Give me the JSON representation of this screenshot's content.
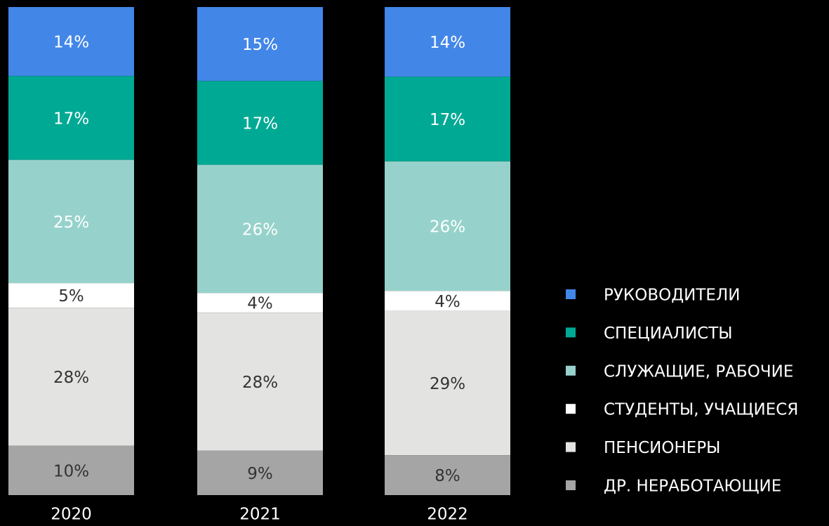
{
  "chart_data": {
    "type": "stacked_bar",
    "categories": [
      "2020",
      "2021",
      "2022"
    ],
    "series": [
      {
        "name": "РУКОВОДИТЕЛИ",
        "color": "#4286e8",
        "values": [
          14,
          15,
          14
        ],
        "value_labels": [
          "14%",
          "15%",
          "14%"
        ]
      },
      {
        "name": "СПЕЦИАЛИСТЫ",
        "color": "#00a994",
        "values": [
          17,
          17,
          17
        ],
        "value_labels": [
          "17%",
          "17%",
          "17%"
        ]
      },
      {
        "name": "СЛУЖАЩИЕ, РАБОЧИЕ",
        "color": "#96d2cb",
        "values": [
          25,
          26,
          26
        ],
        "value_labels": [
          "25%",
          "26%",
          "26%"
        ]
      },
      {
        "name": "СТУДЕНТЫ, УЧАЩИЕСЯ",
        "color": "#ffffff",
        "values": [
          5,
          4,
          4
        ],
        "value_labels": [
          "5%",
          "4%",
          "4%"
        ]
      },
      {
        "name": "ПЕНСИОНЕРЫ",
        "color": "#e3e3e1",
        "values": [
          28,
          28,
          29
        ],
        "value_labels": [
          "28%",
          "28%",
          "29%"
        ]
      },
      {
        "name": "ДР. НЕРАБОТАЮЩИЕ",
        "color": "#a5a5a5",
        "values": [
          10,
          9,
          8
        ],
        "value_labels": [
          "10%",
          "9%",
          "8%"
        ]
      }
    ],
    "legend": "right"
  }
}
